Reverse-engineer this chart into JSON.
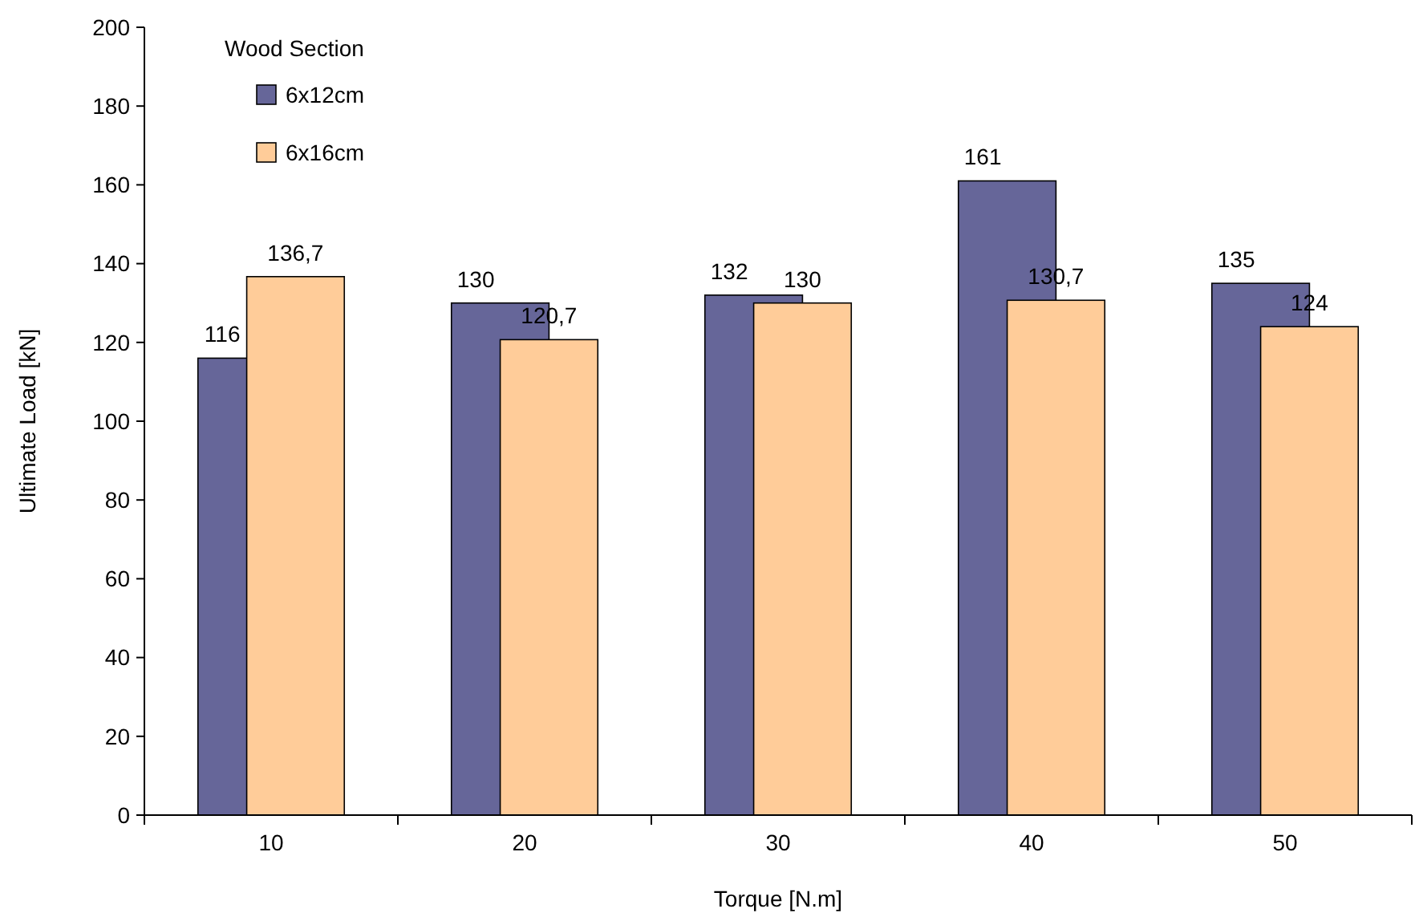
{
  "chart_data": {
    "type": "bar",
    "xlabel": "Torque [N.m]",
    "ylabel": "Ultimate Load [kN]",
    "legend_title": "Wood Section",
    "legend": "top left",
    "categories": [
      "10",
      "20",
      "30",
      "40",
      "50"
    ],
    "ylim": [
      0,
      200
    ],
    "yticks": [
      0,
      20,
      40,
      60,
      80,
      100,
      120,
      140,
      160,
      180,
      200
    ],
    "grid": false,
    "series": [
      {
        "name": "6x12cm",
        "color": "#666699",
        "values": [
          116,
          130,
          132,
          161,
          135
        ],
        "value_labels": [
          "116",
          "130",
          "132",
          "161",
          "135"
        ]
      },
      {
        "name": "6x16cm",
        "color": "#ffcc99",
        "values": [
          136.7,
          120.7,
          130,
          130.7,
          124
        ],
        "value_labels": [
          "136,7",
          "120,7",
          "130",
          "130,7",
          "124"
        ]
      }
    ]
  }
}
